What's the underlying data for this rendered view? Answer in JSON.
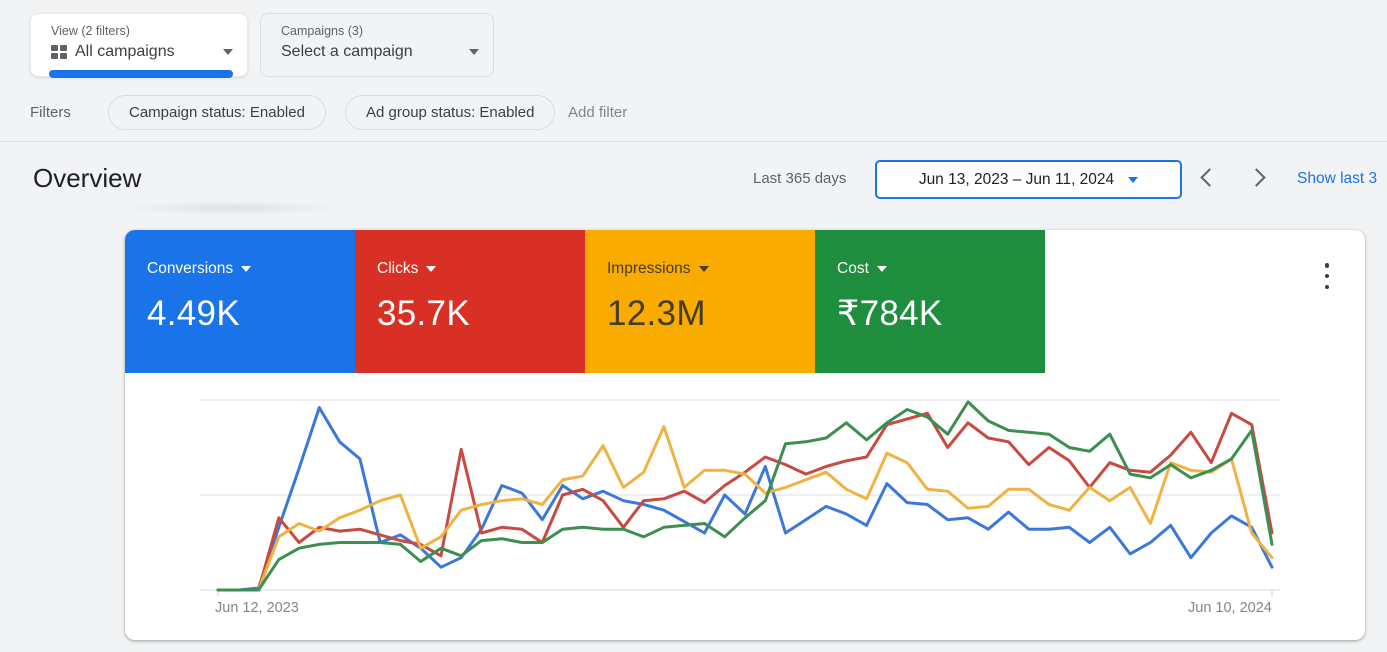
{
  "view_selector": {
    "label": "View (2 filters)",
    "value": "All campaigns"
  },
  "campaign_selector": {
    "label": "Campaigns (3)",
    "value": "Select a campaign"
  },
  "filters": {
    "label": "Filters",
    "chips": [
      "Campaign status: Enabled",
      "Ad group status: Enabled"
    ],
    "add_label": "Add filter"
  },
  "overview": {
    "title": "Overview",
    "range_label": "Last 365 days",
    "date_range": "Jun 13, 2023 – Jun 11, 2024",
    "show_last_link": "Show last 3"
  },
  "metrics": [
    {
      "label": "Conversions",
      "value": "4.49K",
      "color": "#1a73e8",
      "text_color": "#ffffff"
    },
    {
      "label": "Clicks",
      "value": "35.7K",
      "color": "#d93025",
      "text_color": "#ffffff"
    },
    {
      "label": "Impressions",
      "value": "12.3M",
      "color": "#f9ab00",
      "text_color": "#443c26"
    },
    {
      "label": "Cost",
      "value": "₹784K",
      "color": "#1e8e3e",
      "text_color": "#ffffff"
    }
  ],
  "chart_data": {
    "type": "line",
    "points": 53,
    "x_unit": "week",
    "x_start_label": "Jun 12, 2023",
    "x_end_label": "Jun 10, 2024",
    "ylim": [
      0,
      1
    ],
    "grid": "3 horizontal gridlines (0, 0.5, 1.0 of range), no y-axis labels",
    "legend_position": "none (colors match metric cards)",
    "series": [
      {
        "name": "Conversions",
        "color": "#3c78dc",
        "values": [
          0,
          0,
          0.01,
          0.33,
          0.64,
          0.96,
          0.78,
          0.69,
          0.25,
          0.29,
          0.22,
          0.12,
          0.17,
          0.32,
          0.55,
          0.51,
          0.37,
          0.55,
          0.48,
          0.52,
          0.47,
          0.45,
          0.42,
          0.36,
          0.3,
          0.5,
          0.4,
          0.65,
          0.3,
          0.37,
          0.44,
          0.4,
          0.34,
          0.56,
          0.46,
          0.45,
          0.37,
          0.38,
          0.32,
          0.41,
          0.32,
          0.32,
          0.33,
          0.25,
          0.33,
          0.19,
          0.25,
          0.34,
          0.17,
          0.3,
          0.39,
          0.33,
          0.12
        ]
      },
      {
        "name": "Clicks",
        "color": "#c84a41",
        "values": [
          0,
          0,
          0,
          0.38,
          0.25,
          0.33,
          0.31,
          0.32,
          0.29,
          0.26,
          0.24,
          0.18,
          0.74,
          0.3,
          0.33,
          0.32,
          0.25,
          0.5,
          0.53,
          0.47,
          0.33,
          0.47,
          0.48,
          0.52,
          0.46,
          0.55,
          0.62,
          0.7,
          0.66,
          0.61,
          0.65,
          0.68,
          0.7,
          0.87,
          0.9,
          0.93,
          0.75,
          0.88,
          0.8,
          0.78,
          0.66,
          0.75,
          0.68,
          0.54,
          0.67,
          0.63,
          0.62,
          0.71,
          0.83,
          0.67,
          0.93,
          0.87,
          0.3
        ]
      },
      {
        "name": "Impressions",
        "color": "#efb343",
        "values": [
          0,
          0,
          0,
          0.28,
          0.35,
          0.31,
          0.38,
          0.42,
          0.47,
          0.5,
          0.22,
          0.28,
          0.42,
          0.45,
          0.47,
          0.48,
          0.45,
          0.58,
          0.6,
          0.76,
          0.54,
          0.62,
          0.86,
          0.54,
          0.63,
          0.63,
          0.61,
          0.51,
          0.54,
          0.58,
          0.62,
          0.53,
          0.48,
          0.72,
          0.67,
          0.53,
          0.52,
          0.43,
          0.44,
          0.53,
          0.53,
          0.45,
          0.42,
          0.54,
          0.47,
          0.54,
          0.35,
          0.67,
          0.63,
          0.62,
          0.69,
          0.3,
          0.17
        ]
      },
      {
        "name": "Cost",
        "color": "#3d8f4f",
        "values": [
          0,
          0,
          0,
          0.16,
          0.22,
          0.24,
          0.25,
          0.25,
          0.25,
          0.24,
          0.15,
          0.22,
          0.18,
          0.26,
          0.27,
          0.25,
          0.25,
          0.32,
          0.33,
          0.32,
          0.32,
          0.28,
          0.33,
          0.34,
          0.35,
          0.28,
          0.38,
          0.47,
          0.77,
          0.78,
          0.8,
          0.88,
          0.79,
          0.88,
          0.95,
          0.91,
          0.82,
          0.99,
          0.89,
          0.84,
          0.83,
          0.82,
          0.75,
          0.73,
          0.82,
          0.61,
          0.59,
          0.66,
          0.59,
          0.63,
          0.69,
          0.84,
          0.24
        ]
      }
    ]
  }
}
